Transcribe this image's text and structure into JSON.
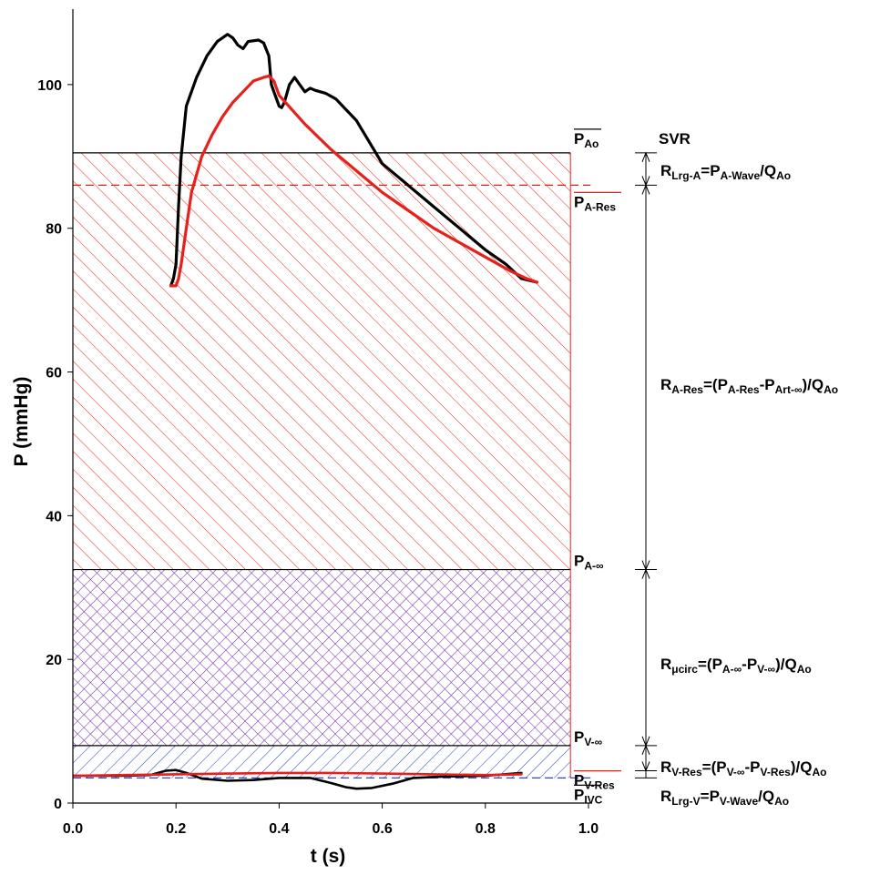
{
  "chart_data": {
    "type": "line",
    "xlabel": "t (s)",
    "ylabel": "P (mmHg)",
    "xlim": [
      0,
      1.0
    ],
    "ylim": [
      0,
      110
    ],
    "x_ticks": [
      0.0,
      0.2,
      0.4,
      0.6,
      0.8,
      1.0
    ],
    "x_tick_labels": [
      "0.0",
      "0.2",
      "0.4",
      "0.6",
      "0.8",
      "1.0"
    ],
    "y_ticks": [
      0,
      20,
      40,
      60,
      80,
      100
    ],
    "y_tick_labels": [
      "0",
      "20",
      "40",
      "60",
      "80",
      "100"
    ],
    "grid": false,
    "series": [
      {
        "color": "#000000",
        "x": [
          0.19,
          0.195,
          0.2,
          0.205,
          0.21,
          0.22,
          0.24,
          0.26,
          0.28,
          0.3,
          0.31,
          0.32,
          0.33,
          0.34,
          0.36,
          0.37,
          0.38,
          0.385,
          0.39,
          0.4,
          0.405,
          0.41,
          0.42,
          0.43,
          0.44,
          0.45,
          0.46,
          0.47,
          0.49,
          0.51,
          0.55,
          0.6,
          0.65,
          0.7,
          0.75,
          0.8,
          0.84,
          0.87,
          0.9
        ],
        "y": [
          72,
          73,
          75,
          83,
          90,
          97,
          101,
          104,
          106,
          107,
          106.5,
          105.5,
          105,
          106,
          106.2,
          105.8,
          104,
          100,
          99,
          97,
          96.8,
          97.5,
          100,
          101,
          100,
          99,
          99.5,
          99.2,
          98.8,
          98,
          95,
          89,
          86,
          83,
          80,
          77,
          75,
          73,
          72.5
        ]
      },
      {
        "color": "#e8201a",
        "x": [
          0.19,
          0.2,
          0.205,
          0.21,
          0.22,
          0.23,
          0.25,
          0.27,
          0.29,
          0.31,
          0.33,
          0.35,
          0.37,
          0.38,
          0.39,
          0.4,
          0.45,
          0.5,
          0.55,
          0.6,
          0.65,
          0.7,
          0.75,
          0.8,
          0.85,
          0.88,
          0.9
        ],
        "y": [
          72,
          72,
          73,
          75,
          80,
          85,
          90,
          93,
          95.5,
          97.5,
          99,
          100.5,
          101,
          101.2,
          100.5,
          98.5,
          94.5,
          91,
          88,
          85,
          82.5,
          80,
          78,
          76,
          74,
          73,
          72.5
        ]
      },
      {
        "color": "#000000",
        "x": [
          0.0,
          0.1,
          0.15,
          0.18,
          0.2,
          0.22,
          0.25,
          0.3,
          0.35,
          0.4,
          0.46,
          0.5,
          0.53,
          0.55,
          0.58,
          0.62,
          0.66,
          0.72,
          0.8,
          0.87
        ],
        "y": [
          3.8,
          3.8,
          3.9,
          4.5,
          4.6,
          4.2,
          3.4,
          3.1,
          3.2,
          3.5,
          3.5,
          2.8,
          2.2,
          2.0,
          2.1,
          2.7,
          3.5,
          3.7,
          3.8,
          4.2
        ]
      },
      {
        "color": "#e8201a",
        "x": [
          0.0,
          0.1,
          0.2,
          0.3,
          0.4,
          0.5,
          0.6,
          0.7,
          0.8,
          0.87
        ],
        "y": [
          3.8,
          3.9,
          4.0,
          4.1,
          4.2,
          4.2,
          4.1,
          4.0,
          3.9,
          4.0
        ]
      }
    ],
    "bands": [
      {
        "pattern": "red-diagonal",
        "y0": 32.5,
        "y1": 90.5,
        "x0": 0.0,
        "x1": 0.965
      },
      {
        "pattern": "purple-crosshatch",
        "y0": 8.0,
        "y1": 32.5,
        "x0": 0.0,
        "x1": 0.965
      },
      {
        "pattern": "blue-diagonal",
        "y0": 3.5,
        "y1": 8.0,
        "x0": 0.0,
        "x1": 0.965
      }
    ],
    "reference_lines": [
      {
        "y": 90.5,
        "color": "#000000",
        "style": "solid"
      },
      {
        "y": 86.0,
        "color": "#e8201a",
        "style": "dashed"
      },
      {
        "y": 32.5,
        "color": "#000000",
        "style": "solid"
      },
      {
        "y": 8.0,
        "color": "#000000",
        "style": "solid"
      },
      {
        "y": 3.5,
        "color": "#3344cc",
        "style": "dashed"
      }
    ],
    "right_labels": [
      {
        "main": "P",
        "sub": "Ao",
        "y": 90.5,
        "color": "#000000",
        "overline": true
      },
      {
        "main": "P",
        "sub": "A-Res",
        "y": 86.0,
        "color": "#e8201a",
        "overline": true
      },
      {
        "main": "P",
        "sub": "A-∞",
        "y": 32.5,
        "color": "#6a1fb0",
        "overline": false
      },
      {
        "main": "P",
        "sub": "V-∞",
        "y": 8.0,
        "color": "#6a1fb0",
        "overline": false
      },
      {
        "main": "P",
        "sub": "V-Res",
        "y": 5.5,
        "color": "#e8201a",
        "overline": true
      },
      {
        "main": "P",
        "sub": "IVC",
        "y": 3.5,
        "color": "#000000",
        "overline": true
      }
    ],
    "svr_title": "SVR",
    "resistances": [
      {
        "name": "R",
        "sub": "Lrg-A",
        "formula": "=P_A-Wave/Q_Ao",
        "y_top": 90.5,
        "y_bottom": 86.0
      },
      {
        "name": "R",
        "sub": "A-Res",
        "formula": "=(P_A-Res-P_Art-∞)/Q_Ao",
        "y_top": 86.0,
        "y_bottom": 32.5
      },
      {
        "name": "R",
        "sub": "μcirc",
        "formula": "=(P_A-∞-P_V-∞)/Q_Ao",
        "y_top": 32.5,
        "y_bottom": 8.0
      },
      {
        "name": "R",
        "sub": "V-Res",
        "formula": "=(P_V-∞-P_V-Res)/Q_Ao",
        "y_top": 8.0,
        "y_bottom": 4.5
      },
      {
        "name": "R",
        "sub": "Lrg-V",
        "formula": "=P_V-Wave/Q_Ao",
        "y_top": 4.5,
        "y_bottom": 3.5
      }
    ]
  }
}
